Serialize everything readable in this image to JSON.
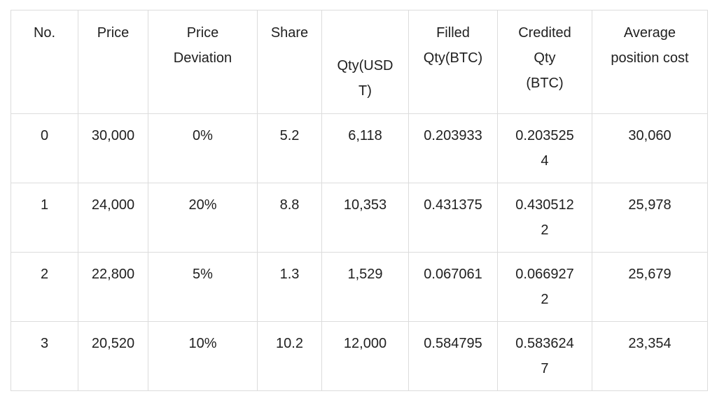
{
  "table": {
    "headers": [
      "No.",
      "Price",
      "Price\nDeviation",
      "Share",
      "Qty(USD\nT)",
      "Filled\nQty(BTC)",
      "Credited\nQty\n(BTC)",
      "Average\nposition cost"
    ],
    "rows": [
      [
        "0",
        "30,000",
        "0%",
        "5.2",
        "6,118",
        "0.203933",
        "0.203525\n4",
        "30,060"
      ],
      [
        "1",
        "24,000",
        "20%",
        "8.8",
        "10,353",
        "0.431375",
        "0.430512\n2",
        "25,978"
      ],
      [
        "2",
        "22,800",
        "5%",
        "1.3",
        "1,529",
        "0.067061",
        "0.066927\n2",
        "25,679"
      ],
      [
        "3",
        "20,520",
        "10%",
        "10.2",
        "12,000",
        "0.584795",
        "0.583624\n7",
        "23,354"
      ]
    ]
  }
}
